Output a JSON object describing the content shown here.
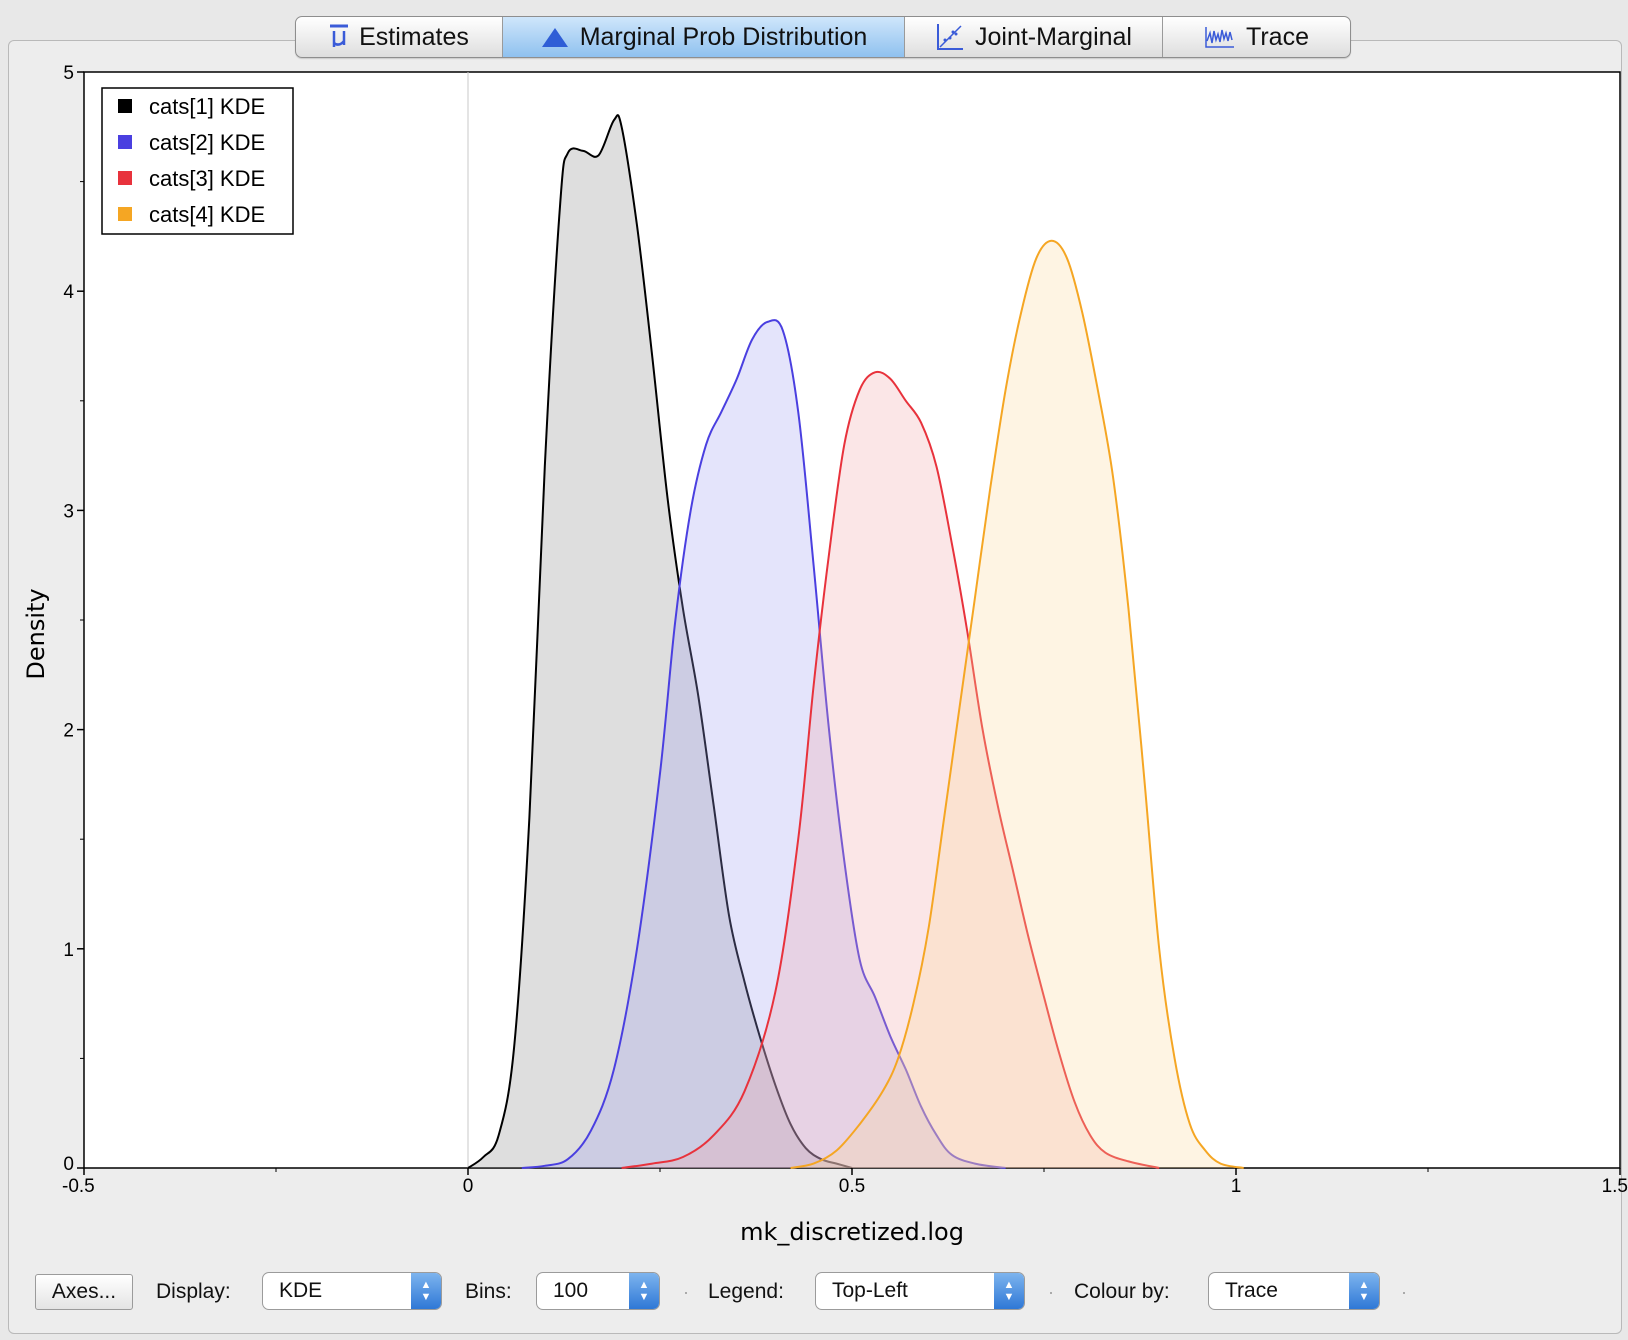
{
  "tabs": [
    {
      "label": "Estimates",
      "icon": "mu-bar-icon"
    },
    {
      "label": "Marginal Prob Distribution",
      "icon": "triangle-one-icon"
    },
    {
      "label": "Joint-Marginal",
      "icon": "scatter-diagonal-icon"
    },
    {
      "label": "Trace",
      "icon": "trace-wave-icon"
    }
  ],
  "active_tab": "Marginal Prob Distribution",
  "chart_data": {
    "type": "area",
    "xlabel": "mk_discretized.log",
    "ylabel": "Density",
    "xlim": [
      -0.5,
      1.5
    ],
    "ylim": [
      0,
      5
    ],
    "x_ticks": [
      -0.5,
      0,
      0.5,
      1,
      1.5
    ],
    "x_tick_labels": [
      "-0.5",
      "0",
      "0.5",
      "1",
      "1.5"
    ],
    "y_ticks": [
      0,
      1,
      2,
      3,
      4,
      5
    ],
    "y_tick_labels": [
      "0",
      "1",
      "2",
      "3",
      "4",
      "5"
    ],
    "grid": false,
    "legend_position": "top-left",
    "series": [
      {
        "name": "cats[1] KDE",
        "color": "#000000",
        "fill": "#888888",
        "points": [
          [
            0.0,
            0.0
          ],
          [
            0.02,
            0.05
          ],
          [
            0.04,
            0.15
          ],
          [
            0.06,
            0.55
          ],
          [
            0.08,
            1.6
          ],
          [
            0.1,
            3.2
          ],
          [
            0.12,
            4.4
          ],
          [
            0.13,
            4.63
          ],
          [
            0.15,
            4.64
          ],
          [
            0.17,
            4.62
          ],
          [
            0.19,
            4.78
          ],
          [
            0.2,
            4.75
          ],
          [
            0.22,
            4.3
          ],
          [
            0.24,
            3.7
          ],
          [
            0.26,
            3.05
          ],
          [
            0.28,
            2.55
          ],
          [
            0.3,
            2.15
          ],
          [
            0.32,
            1.65
          ],
          [
            0.34,
            1.15
          ],
          [
            0.36,
            0.85
          ],
          [
            0.38,
            0.6
          ],
          [
            0.4,
            0.38
          ],
          [
            0.42,
            0.2
          ],
          [
            0.44,
            0.09
          ],
          [
            0.46,
            0.04
          ],
          [
            0.48,
            0.02
          ],
          [
            0.5,
            0.0
          ]
        ]
      },
      {
        "name": "cats[2] KDE",
        "color": "#4a3fe0",
        "fill": "#9f9ff0",
        "points": [
          [
            0.07,
            0.0
          ],
          [
            0.1,
            0.01
          ],
          [
            0.13,
            0.04
          ],
          [
            0.16,
            0.17
          ],
          [
            0.19,
            0.45
          ],
          [
            0.22,
            1.0
          ],
          [
            0.25,
            1.8
          ],
          [
            0.27,
            2.5
          ],
          [
            0.29,
            3.0
          ],
          [
            0.31,
            3.3
          ],
          [
            0.33,
            3.45
          ],
          [
            0.35,
            3.6
          ],
          [
            0.37,
            3.78
          ],
          [
            0.39,
            3.86
          ],
          [
            0.41,
            3.82
          ],
          [
            0.43,
            3.45
          ],
          [
            0.45,
            2.75
          ],
          [
            0.47,
            2.0
          ],
          [
            0.49,
            1.4
          ],
          [
            0.51,
            0.95
          ],
          [
            0.53,
            0.78
          ],
          [
            0.55,
            0.6
          ],
          [
            0.57,
            0.45
          ],
          [
            0.59,
            0.28
          ],
          [
            0.61,
            0.15
          ],
          [
            0.63,
            0.06
          ],
          [
            0.66,
            0.02
          ],
          [
            0.7,
            0.0
          ]
        ]
      },
      {
        "name": "cats[3] KDE",
        "color": "#e8323c",
        "fill": "#f2a4a8",
        "points": [
          [
            0.2,
            0.0
          ],
          [
            0.24,
            0.02
          ],
          [
            0.28,
            0.05
          ],
          [
            0.32,
            0.15
          ],
          [
            0.36,
            0.35
          ],
          [
            0.4,
            0.8
          ],
          [
            0.43,
            1.5
          ],
          [
            0.45,
            2.2
          ],
          [
            0.47,
            2.8
          ],
          [
            0.49,
            3.3
          ],
          [
            0.51,
            3.55
          ],
          [
            0.53,
            3.63
          ],
          [
            0.55,
            3.6
          ],
          [
            0.57,
            3.5
          ],
          [
            0.59,
            3.4
          ],
          [
            0.61,
            3.2
          ],
          [
            0.63,
            2.85
          ],
          [
            0.65,
            2.45
          ],
          [
            0.67,
            2.0
          ],
          [
            0.69,
            1.65
          ],
          [
            0.71,
            1.35
          ],
          [
            0.73,
            1.05
          ],
          [
            0.75,
            0.78
          ],
          [
            0.77,
            0.52
          ],
          [
            0.79,
            0.3
          ],
          [
            0.81,
            0.15
          ],
          [
            0.83,
            0.07
          ],
          [
            0.86,
            0.03
          ],
          [
            0.9,
            0.0
          ]
        ]
      },
      {
        "name": "cats[4] KDE",
        "color": "#f5a623",
        "fill": "#fbd89a",
        "points": [
          [
            0.42,
            0.0
          ],
          [
            0.45,
            0.02
          ],
          [
            0.48,
            0.08
          ],
          [
            0.51,
            0.2
          ],
          [
            0.54,
            0.35
          ],
          [
            0.56,
            0.5
          ],
          [
            0.58,
            0.75
          ],
          [
            0.6,
            1.1
          ],
          [
            0.62,
            1.6
          ],
          [
            0.64,
            2.1
          ],
          [
            0.66,
            2.6
          ],
          [
            0.68,
            3.1
          ],
          [
            0.7,
            3.55
          ],
          [
            0.72,
            3.9
          ],
          [
            0.74,
            4.15
          ],
          [
            0.76,
            4.23
          ],
          [
            0.78,
            4.15
          ],
          [
            0.8,
            3.9
          ],
          [
            0.82,
            3.55
          ],
          [
            0.84,
            3.15
          ],
          [
            0.86,
            2.55
          ],
          [
            0.88,
            1.8
          ],
          [
            0.9,
            1.0
          ],
          [
            0.92,
            0.5
          ],
          [
            0.94,
            0.2
          ],
          [
            0.96,
            0.08
          ],
          [
            0.98,
            0.02
          ],
          [
            1.01,
            0.0
          ]
        ]
      }
    ]
  },
  "toolbar": {
    "axes_button": "Axes...",
    "display_label": "Display:",
    "display_value": "KDE",
    "bins_label": "Bins:",
    "bins_value": "100",
    "legend_label": "Legend:",
    "legend_value": "Top-Left",
    "colour_label": "Colour by:",
    "colour_value": "Trace"
  }
}
